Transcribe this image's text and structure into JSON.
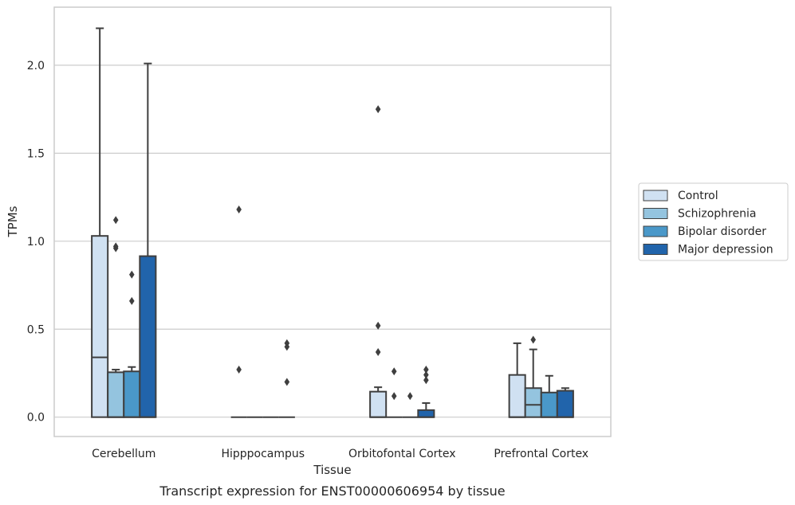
{
  "chart_data": {
    "type": "box",
    "title": "",
    "caption": "Transcript expression for ENST00000606954 by tissue",
    "xlabel": "Tissue",
    "ylabel": "TPMs",
    "ylim": [
      -0.11,
      2.33
    ],
    "yticks": [
      0.0,
      0.5,
      1.0,
      1.5,
      2.0
    ],
    "ytick_labels": [
      "0.0",
      "0.5",
      "1.0",
      "1.5",
      "2.0"
    ],
    "grid": "horizontal",
    "legend_position": "right",
    "categories": [
      "Cerebellum",
      "Hipppocampus",
      "Orbitofontal Cortex",
      "Prefrontal Cortex"
    ],
    "series": [
      {
        "name": "Control",
        "color": "#d0e1f2",
        "boxes": [
          {
            "q1": 0.0,
            "median": 0.34,
            "q3": 1.03,
            "whisker_low": 0.0,
            "whisker_high": 2.21,
            "outliers": []
          },
          {
            "q1": 0.0,
            "median": 0.0,
            "q3": 0.0,
            "whisker_low": 0.0,
            "whisker_high": 0.0,
            "outliers": [
              1.18,
              0.27
            ]
          },
          {
            "q1": 0.0,
            "median": 0.0,
            "q3": 0.145,
            "whisker_low": 0.0,
            "whisker_high": 0.17,
            "outliers": [
              1.75,
              0.52,
              0.37
            ]
          },
          {
            "q1": 0.0,
            "median": 0.0,
            "q3": 0.24,
            "whisker_low": 0.0,
            "whisker_high": 0.42,
            "outliers": []
          }
        ]
      },
      {
        "name": "Schizophrenia",
        "color": "#94c4df",
        "boxes": [
          {
            "q1": 0.0,
            "median": 0.0,
            "q3": 0.255,
            "whisker_low": 0.0,
            "whisker_high": 0.27,
            "outliers": [
              1.12,
              0.97,
              0.96
            ]
          },
          {
            "q1": 0.0,
            "median": 0.0,
            "q3": 0.0,
            "whisker_low": 0.0,
            "whisker_high": 0.0,
            "outliers": []
          },
          {
            "q1": 0.0,
            "median": 0.0,
            "q3": 0.0,
            "whisker_low": 0.0,
            "whisker_high": 0.0,
            "outliers": [
              0.26,
              0.12
            ]
          },
          {
            "q1": 0.0,
            "median": 0.07,
            "q3": 0.165,
            "whisker_low": 0.0,
            "whisker_high": 0.385,
            "outliers": [
              0.44
            ]
          }
        ]
      },
      {
        "name": "Bipolar disorder",
        "color": "#4a98c9",
        "boxes": [
          {
            "q1": 0.0,
            "median": 0.0,
            "q3": 0.26,
            "whisker_low": 0.0,
            "whisker_high": 0.285,
            "outliers": [
              0.81,
              0.66
            ]
          },
          {
            "q1": 0.0,
            "median": 0.0,
            "q3": 0.0,
            "whisker_low": 0.0,
            "whisker_high": 0.0,
            "outliers": []
          },
          {
            "q1": 0.0,
            "median": 0.0,
            "q3": 0.0,
            "whisker_low": 0.0,
            "whisker_high": 0.0,
            "outliers": [
              0.12
            ]
          },
          {
            "q1": 0.0,
            "median": 0.0,
            "q3": 0.14,
            "whisker_low": 0.0,
            "whisker_high": 0.235,
            "outliers": []
          }
        ]
      },
      {
        "name": "Major depression",
        "color": "#2164ab",
        "boxes": [
          {
            "q1": 0.0,
            "median": 0.0,
            "q3": 0.915,
            "whisker_low": 0.0,
            "whisker_high": 2.01,
            "outliers": []
          },
          {
            "q1": 0.0,
            "median": 0.0,
            "q3": 0.0,
            "whisker_low": 0.0,
            "whisker_high": 0.0,
            "outliers": [
              0.42,
              0.4,
              0.2
            ]
          },
          {
            "q1": 0.0,
            "median": 0.0,
            "q3": 0.04,
            "whisker_low": 0.0,
            "whisker_high": 0.08,
            "outliers": [
              0.27,
              0.24,
              0.21
            ]
          },
          {
            "q1": 0.0,
            "median": 0.0,
            "q3": 0.15,
            "whisker_low": 0.0,
            "whisker_high": 0.165,
            "outliers": []
          }
        ]
      }
    ]
  }
}
